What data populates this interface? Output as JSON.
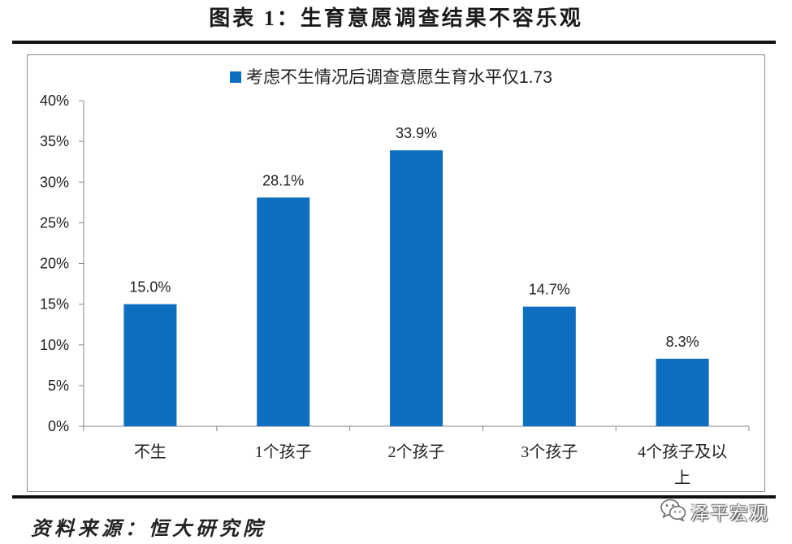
{
  "colors": {
    "bar": "#0E6EBF",
    "rule": "#111111",
    "frame": "#8C8C8C",
    "axis": "#868686",
    "text": "#222222"
  },
  "chart_data": {
    "type": "bar",
    "title": "图表 1：生育意愿调查结果不容乐观",
    "categories": [
      "不生",
      "1个孩子",
      "2个孩子",
      "3个孩子",
      "4个孩子及以上"
    ],
    "series": [
      {
        "name": "考虑不生情况后调查意愿生育水平仅1.73",
        "values": [
          15.0,
          28.1,
          33.9,
          14.7,
          8.3
        ]
      }
    ],
    "data_labels": [
      "15.0%",
      "28.1%",
      "33.9%",
      "14.7%",
      "8.3%"
    ],
    "y_tick_labels": [
      "0%",
      "5%",
      "10%",
      "15%",
      "20%",
      "25%",
      "30%",
      "35%",
      "40%"
    ],
    "ylim": [
      0,
      40
    ],
    "y_unit": "%",
    "legend_position": "top-center",
    "grid": false
  },
  "source": "资料来源：恒大研究院",
  "watermark": {
    "icon": "wechat-icon",
    "text": "泽平宏观"
  }
}
